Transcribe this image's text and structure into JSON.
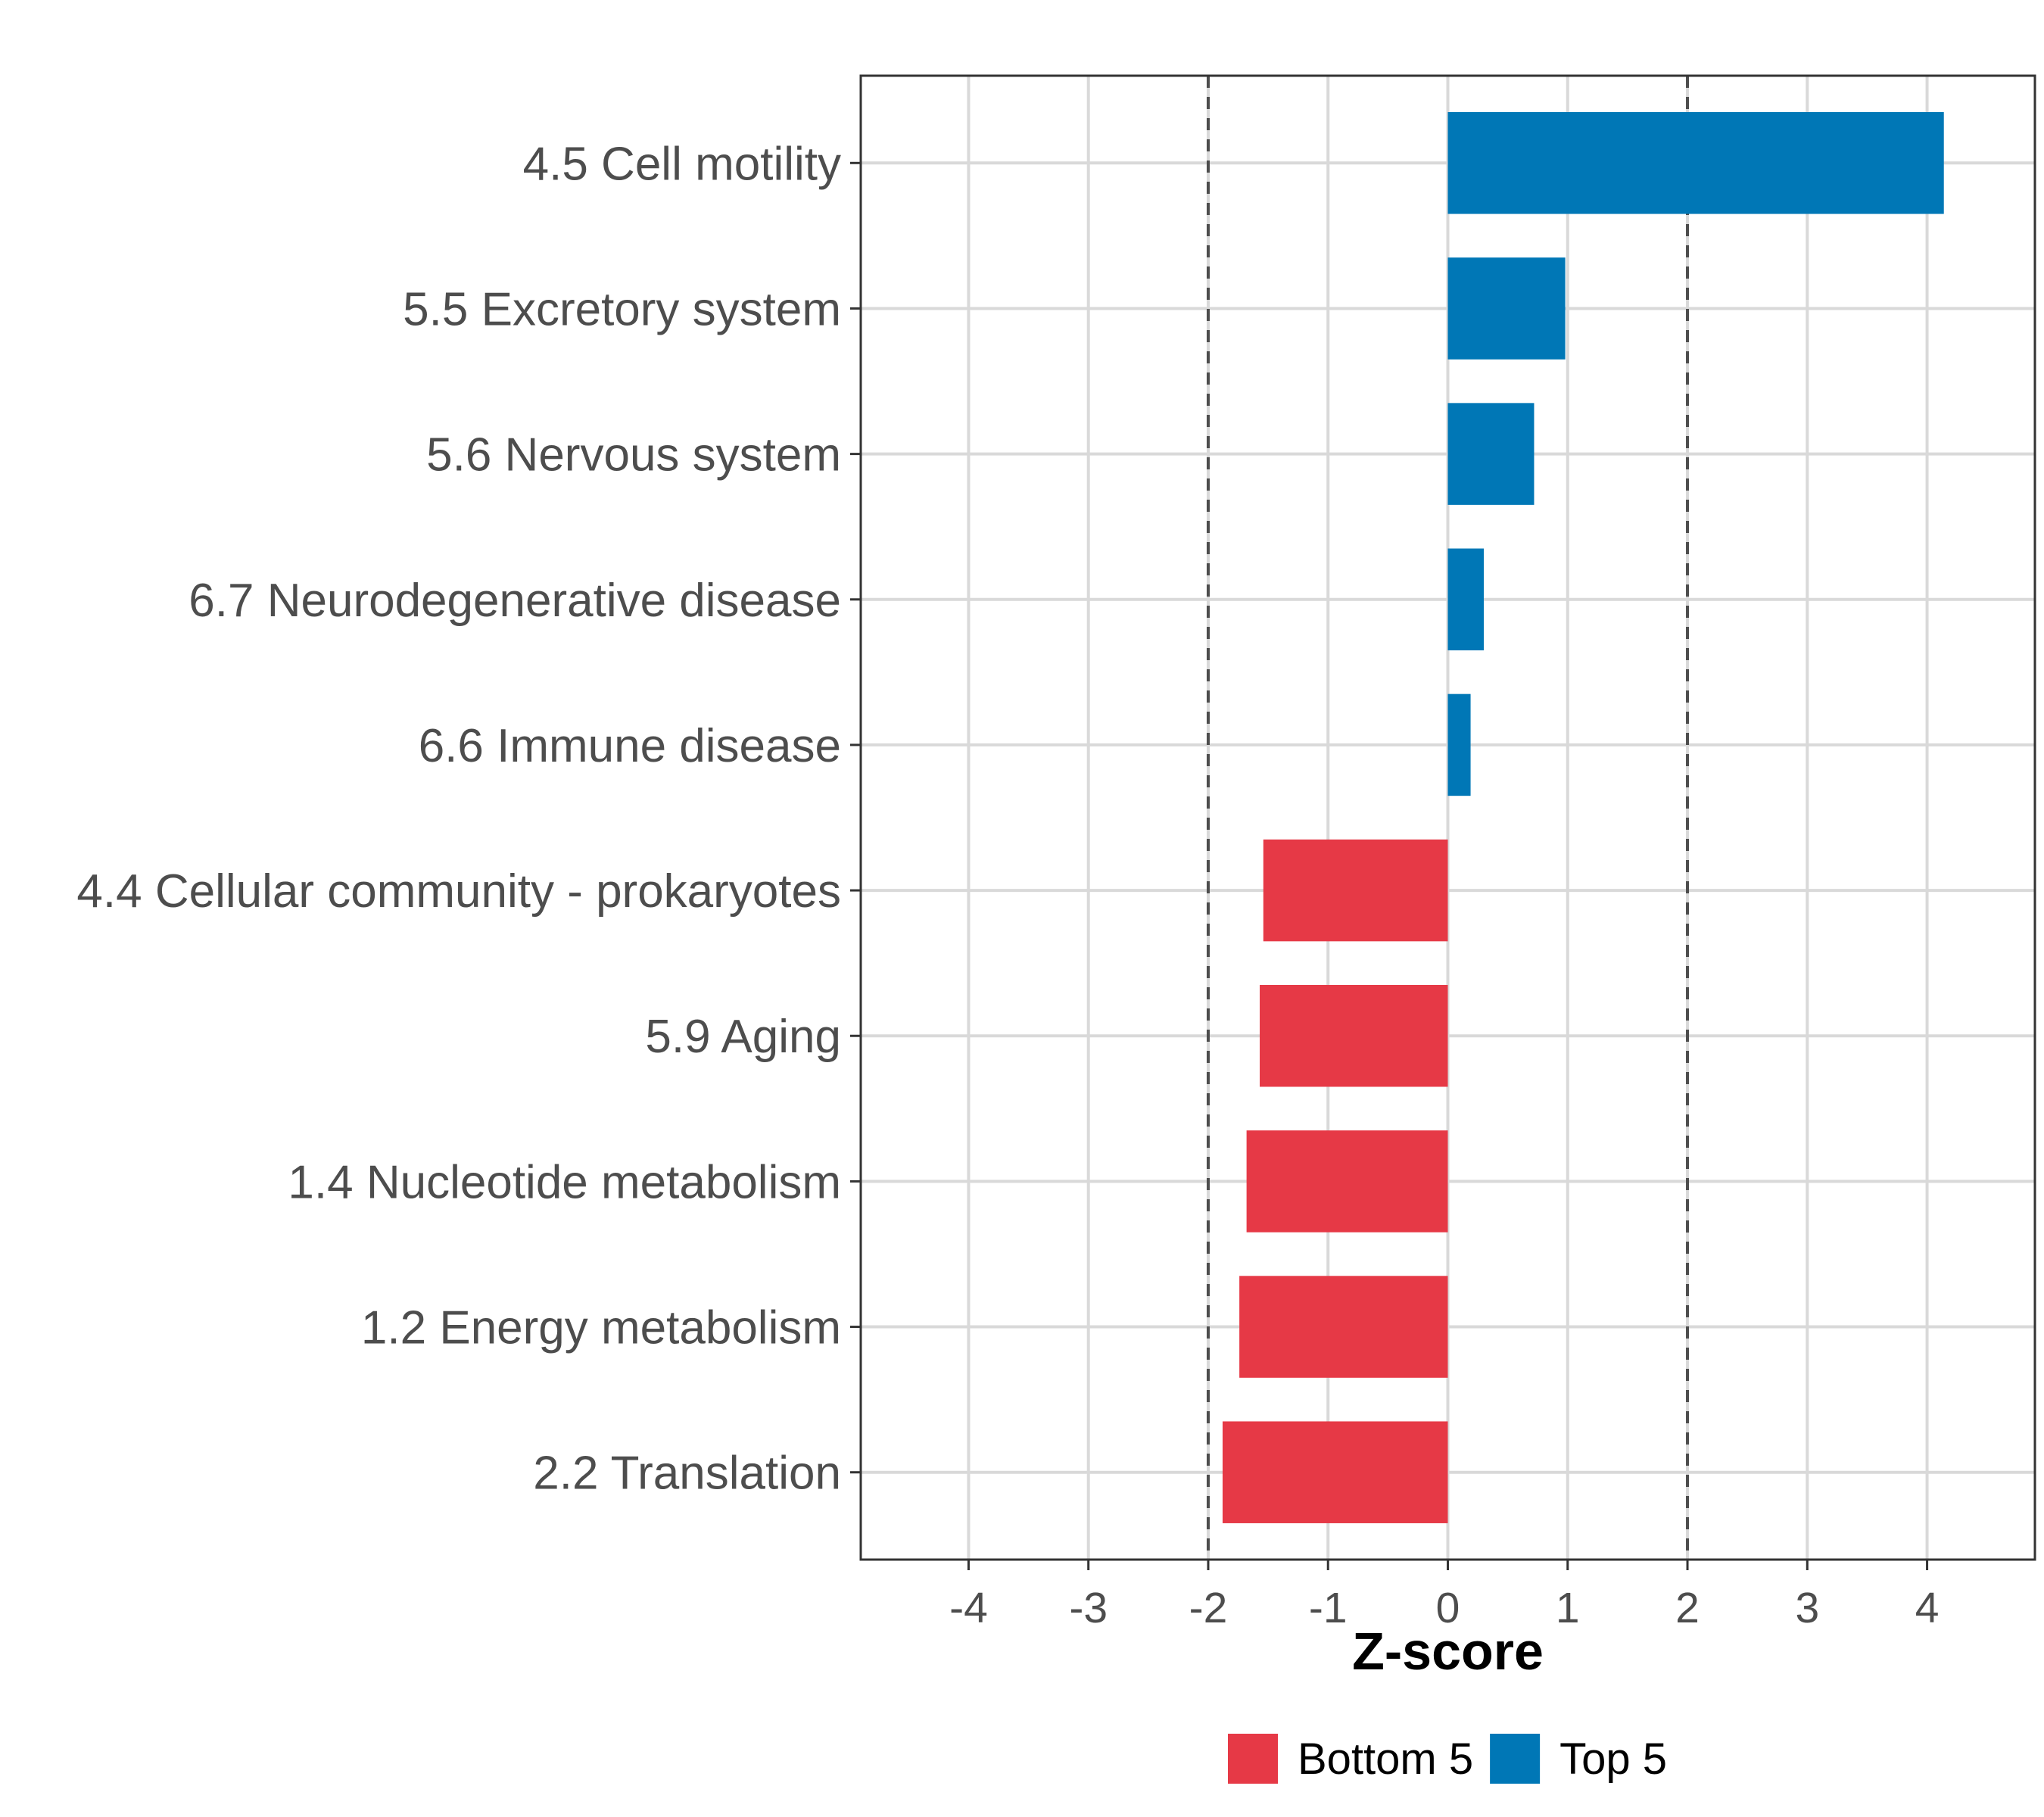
{
  "chart_data": {
    "type": "bar",
    "orientation": "horizontal",
    "categories": [
      "4.5 Cell motility",
      "5.5 Excretory system",
      "5.6 Nervous system",
      "6.7 Neurodegenerative disease",
      "6.6 Immune disease",
      "4.4 Cellular community - prokaryotes",
      "5.9 Aging",
      "1.4 Nucleotide metabolism",
      "1.2 Energy metabolism",
      "2.2 Translation"
    ],
    "values": [
      4.14,
      0.98,
      0.72,
      0.3,
      0.19,
      -1.54,
      -1.57,
      -1.68,
      -1.74,
      -1.88
    ],
    "groups": [
      "Top 5",
      "Top 5",
      "Top 5",
      "Top 5",
      "Top 5",
      "Bottom 5",
      "Bottom 5",
      "Bottom 5",
      "Bottom 5",
      "Bottom 5"
    ],
    "xlabel": "Z-score",
    "ylabel": "",
    "xlim": [
      -4.9,
      4.9
    ],
    "xticks": [
      -4,
      -3,
      -2,
      -1,
      0,
      1,
      2,
      3,
      4
    ],
    "reference_lines": [
      -2,
      2
    ],
    "legend": {
      "position": "bottom",
      "entries": [
        {
          "label": "Bottom 5",
          "color": "#e63946"
        },
        {
          "label": "Top 5",
          "color": "#0077b6"
        }
      ]
    },
    "grid": true
  }
}
